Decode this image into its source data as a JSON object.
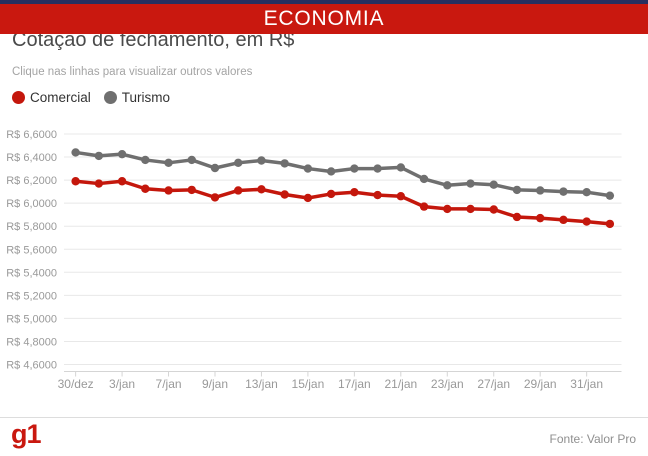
{
  "banner": {
    "label": "ECONOMIA",
    "bg": "#c9180f"
  },
  "colors": {
    "top_strip": "#272f60",
    "brand_red": "#c9180f",
    "grid_line": "#e8e8e8",
    "axis_line": "#d5d5d5",
    "tick_text": "#999999"
  },
  "header": {
    "title": "Cotação de fechamento, em R$",
    "subtitle": "Clique nas linhas para visualizar outros valores"
  },
  "legend": [
    {
      "label": "Comercial",
      "color": "#c4170c"
    },
    {
      "label": "Turismo",
      "color": "#6f6f6f"
    }
  ],
  "chart_data": {
    "type": "line",
    "title": "Cotação de fechamento, em R$",
    "x_tick_labels": [
      "30/dez",
      "3/jan",
      "7/jan",
      "9/jan",
      "13/jan",
      "15/jan",
      "17/jan",
      "21/jan",
      "23/jan",
      "27/jan",
      "29/jan",
      "31/jan"
    ],
    "x_label_every_n_points": 2,
    "series": [
      {
        "name": "Comercial",
        "color": "#c4170c",
        "values": [
          6.19,
          6.17,
          6.19,
          6.125,
          6.11,
          6.115,
          6.05,
          6.11,
          6.12,
          6.075,
          6.045,
          6.08,
          6.095,
          6.07,
          6.06,
          5.97,
          5.95,
          5.95,
          5.945,
          5.88,
          5.87,
          5.855,
          5.84,
          5.82
        ]
      },
      {
        "name": "Turismo",
        "color": "#6f6f6f",
        "values": [
          6.44,
          6.41,
          6.425,
          6.375,
          6.35,
          6.375,
          6.305,
          6.35,
          6.37,
          6.345,
          6.3,
          6.275,
          6.3,
          6.3,
          6.31,
          6.21,
          6.155,
          6.17,
          6.16,
          6.115,
          6.11,
          6.1,
          6.095,
          6.065
        ]
      }
    ],
    "y_tick_labels": [
      "R$ 6,6000",
      "R$ 6,4000",
      "R$ 6,2000",
      "R$ 6,0000",
      "R$ 5,8000",
      "R$ 5,6000",
      "R$ 5,4000",
      "R$ 5,2000",
      "R$ 5,0000",
      "R$ 4,8000",
      "R$ 4,6000"
    ],
    "y_tick_values": [
      6.6,
      6.4,
      6.2,
      6.0,
      5.8,
      5.6,
      5.4,
      5.2,
      5.0,
      4.8,
      4.6
    ],
    "ylim": [
      4.55,
      6.65
    ],
    "grid": true,
    "legend_position": "top-left",
    "currency_prefix": "R$"
  },
  "footer": {
    "logo": "g1",
    "source": "Fonte: Valor Pro"
  }
}
